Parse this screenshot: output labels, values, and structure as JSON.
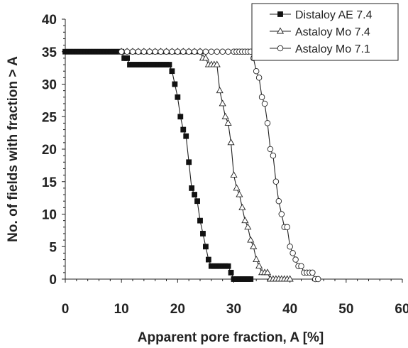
{
  "chart_data": {
    "type": "line",
    "title": "",
    "xlabel": "Apparent pore fraction, A [%]",
    "ylabel": "No. of fields with fraction > A",
    "xlim": [
      0,
      60
    ],
    "ylim": [
      0,
      40
    ],
    "xticks": [
      0,
      10,
      20,
      30,
      40,
      50,
      60
    ],
    "yticks": [
      0,
      5,
      10,
      15,
      20,
      25,
      30,
      35,
      40
    ],
    "grid": false,
    "legend_position": "top-right",
    "series": [
      {
        "name": "Distaloy AE 7.4",
        "marker": "filled-square",
        "points": [
          [
            0,
            35
          ],
          [
            0.5,
            35
          ],
          [
            1,
            35
          ],
          [
            1.5,
            35
          ],
          [
            2,
            35
          ],
          [
            2.5,
            35
          ],
          [
            3,
            35
          ],
          [
            3.5,
            35
          ],
          [
            4,
            35
          ],
          [
            4.5,
            35
          ],
          [
            5,
            35
          ],
          [
            5.5,
            35
          ],
          [
            6,
            35
          ],
          [
            6.5,
            35
          ],
          [
            7,
            35
          ],
          [
            7.5,
            35
          ],
          [
            8,
            35
          ],
          [
            8.5,
            35
          ],
          [
            9,
            35
          ],
          [
            9.5,
            35
          ],
          [
            10,
            35
          ],
          [
            10.5,
            34
          ],
          [
            11,
            34
          ],
          [
            11.5,
            33
          ],
          [
            12,
            33
          ],
          [
            12.5,
            33
          ],
          [
            13,
            33
          ],
          [
            13.5,
            33
          ],
          [
            14,
            33
          ],
          [
            14.5,
            33
          ],
          [
            15,
            33
          ],
          [
            15.5,
            33
          ],
          [
            16,
            33
          ],
          [
            16.5,
            33
          ],
          [
            17,
            33
          ],
          [
            17.5,
            33
          ],
          [
            18,
            33
          ],
          [
            18.5,
            33
          ],
          [
            19,
            32
          ],
          [
            19.5,
            30
          ],
          [
            20,
            28
          ],
          [
            20.5,
            25
          ],
          [
            21,
            23
          ],
          [
            21.5,
            22
          ],
          [
            22,
            18
          ],
          [
            22.5,
            14
          ],
          [
            23,
            13
          ],
          [
            23.5,
            12
          ],
          [
            24,
            9
          ],
          [
            24.5,
            7
          ],
          [
            25,
            5
          ],
          [
            25.5,
            3
          ],
          [
            26,
            2
          ],
          [
            26.5,
            2
          ],
          [
            27,
            2
          ],
          [
            27.5,
            2
          ],
          [
            28,
            2
          ],
          [
            28.5,
            2
          ],
          [
            29,
            2
          ],
          [
            29.5,
            1
          ],
          [
            30,
            0
          ],
          [
            30.5,
            0
          ],
          [
            31,
            0
          ],
          [
            31.5,
            0
          ],
          [
            32,
            0
          ],
          [
            32.5,
            0
          ],
          [
            33,
            0
          ]
        ]
      },
      {
        "name": "Astaloy Mo 7.4",
        "marker": "open-triangle",
        "points": [
          [
            10,
            35
          ],
          [
            11,
            35
          ],
          [
            12,
            35
          ],
          [
            13,
            35
          ],
          [
            14,
            35
          ],
          [
            15,
            35
          ],
          [
            16,
            35
          ],
          [
            17,
            35
          ],
          [
            18,
            35
          ],
          [
            19,
            35
          ],
          [
            20,
            35
          ],
          [
            21,
            35
          ],
          [
            22,
            35
          ],
          [
            23,
            35
          ],
          [
            24,
            35
          ],
          [
            24.5,
            34
          ],
          [
            25,
            34
          ],
          [
            25.5,
            33
          ],
          [
            26,
            33
          ],
          [
            26.5,
            33
          ],
          [
            27,
            33
          ],
          [
            27.5,
            29
          ],
          [
            28,
            27
          ],
          [
            28.5,
            25
          ],
          [
            29,
            24
          ],
          [
            29.5,
            21
          ],
          [
            30,
            16
          ],
          [
            30.5,
            14
          ],
          [
            31,
            13
          ],
          [
            31.5,
            11
          ],
          [
            32,
            9
          ],
          [
            32.5,
            8
          ],
          [
            33,
            6
          ],
          [
            33.5,
            5
          ],
          [
            34,
            3
          ],
          [
            34.5,
            2
          ],
          [
            35,
            1
          ],
          [
            35.5,
            1
          ],
          [
            36,
            1
          ],
          [
            36.5,
            0
          ],
          [
            37,
            0
          ],
          [
            37.5,
            0
          ],
          [
            38,
            0
          ],
          [
            38.5,
            0
          ],
          [
            39,
            0
          ],
          [
            39.5,
            0
          ],
          [
            40,
            0
          ]
        ]
      },
      {
        "name": "Astaloy Mo 7.1",
        "marker": "open-circle",
        "points": [
          [
            10,
            35
          ],
          [
            11,
            35
          ],
          [
            12,
            35
          ],
          [
            13,
            35
          ],
          [
            14,
            35
          ],
          [
            15,
            35
          ],
          [
            16,
            35
          ],
          [
            17,
            35
          ],
          [
            18,
            35
          ],
          [
            19,
            35
          ],
          [
            20,
            35
          ],
          [
            21,
            35
          ],
          [
            22,
            35
          ],
          [
            23,
            35
          ],
          [
            24,
            35
          ],
          [
            25,
            35
          ],
          [
            26,
            35
          ],
          [
            27,
            35
          ],
          [
            28,
            35
          ],
          [
            29,
            35
          ],
          [
            30,
            35
          ],
          [
            30.5,
            35
          ],
          [
            31,
            35
          ],
          [
            31.5,
            35
          ],
          [
            32,
            35
          ],
          [
            32.5,
            35
          ],
          [
            33,
            35
          ],
          [
            33.5,
            34
          ],
          [
            34,
            32
          ],
          [
            34.5,
            31
          ],
          [
            35,
            28
          ],
          [
            35.5,
            27
          ],
          [
            36,
            24
          ],
          [
            36.5,
            20
          ],
          [
            37,
            19
          ],
          [
            37.5,
            15
          ],
          [
            38,
            12
          ],
          [
            38.5,
            10
          ],
          [
            39,
            8
          ],
          [
            39.5,
            8
          ],
          [
            40,
            5
          ],
          [
            40.5,
            4
          ],
          [
            41,
            3
          ],
          [
            41.5,
            2
          ],
          [
            42,
            2
          ],
          [
            42.5,
            1
          ],
          [
            43,
            1
          ],
          [
            43.5,
            1
          ],
          [
            44,
            1
          ],
          [
            44.5,
            0
          ],
          [
            45,
            0
          ]
        ]
      }
    ]
  }
}
